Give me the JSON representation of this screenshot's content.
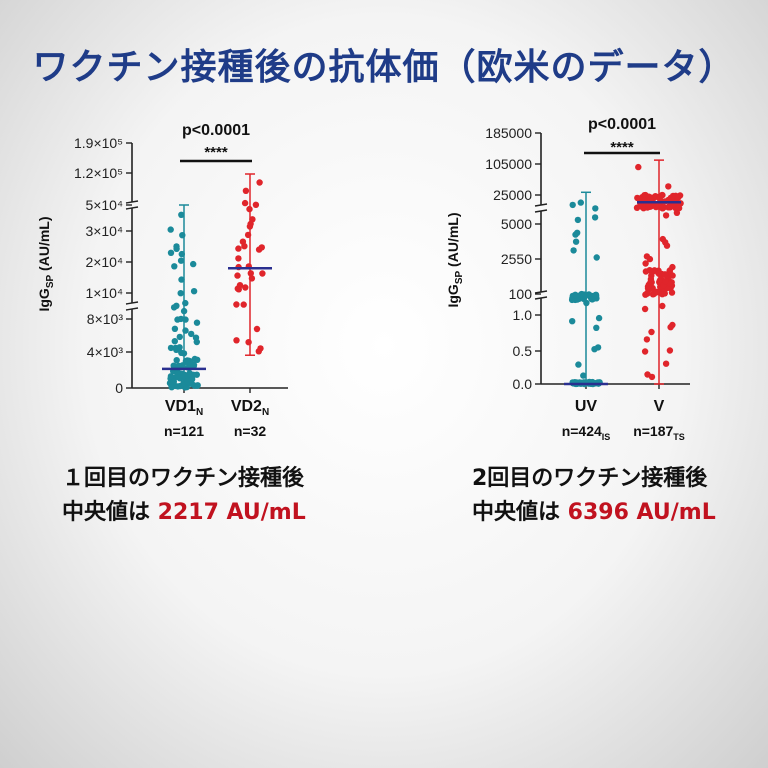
{
  "title": "ワクチン接種後の抗体価（欧米のデータ）",
  "chart_data": [
    {
      "type": "scatter",
      "ylabel": "IgG",
      "ylabel_sub": "SP",
      "ylabel_unit": " (AU/mL)",
      "significance": "p<0.0001",
      "stars": "****",
      "yticks": [
        "0",
        "4×10³",
        "8×10³",
        "1×10⁴",
        "2×10⁴",
        "3×10⁴",
        "5×10⁴",
        "1.2×10⁵",
        "1.9×10⁵"
      ],
      "groups": [
        {
          "name": "VD1",
          "sub": "N",
          "n_label": "n=121",
          "color": "#1b8a9a",
          "median": 2217,
          "min": 0,
          "max": 50000
        },
        {
          "name": "VD2",
          "sub": "N",
          "n_label": "n=32",
          "color": "#e0252b",
          "median": 18000,
          "min": 3800,
          "max": 120000
        }
      ]
    },
    {
      "type": "scatter",
      "ylabel": "IgG",
      "ylabel_sub": "SP",
      "ylabel_unit": " (AU/mL)",
      "significance": "p<0.0001",
      "stars": "****",
      "yticks": [
        "0.0",
        "0.5",
        "1.0",
        "100",
        "2550",
        "5000",
        "25000",
        "105000",
        "185000"
      ],
      "groups": [
        {
          "name": "UV",
          "n_label": "n=424",
          "n_sub": "IS",
          "color": "#1b8a9a",
          "median": 0,
          "min": 0,
          "max": 32000
        },
        {
          "name": "V",
          "n_label": "n=187",
          "n_sub": "TS",
          "color": "#e0252b",
          "median": 6396,
          "min": 0,
          "max": 115000
        }
      ]
    }
  ],
  "captions": [
    {
      "line1": "１回目のワクチン接種後",
      "line2_prefix": "中央値は ",
      "line2_value": "2217 AU/mL"
    },
    {
      "line1": "2回目のワクチン接種後",
      "line2_prefix": "中央値は ",
      "line2_value": "6396 AU/mL"
    }
  ]
}
